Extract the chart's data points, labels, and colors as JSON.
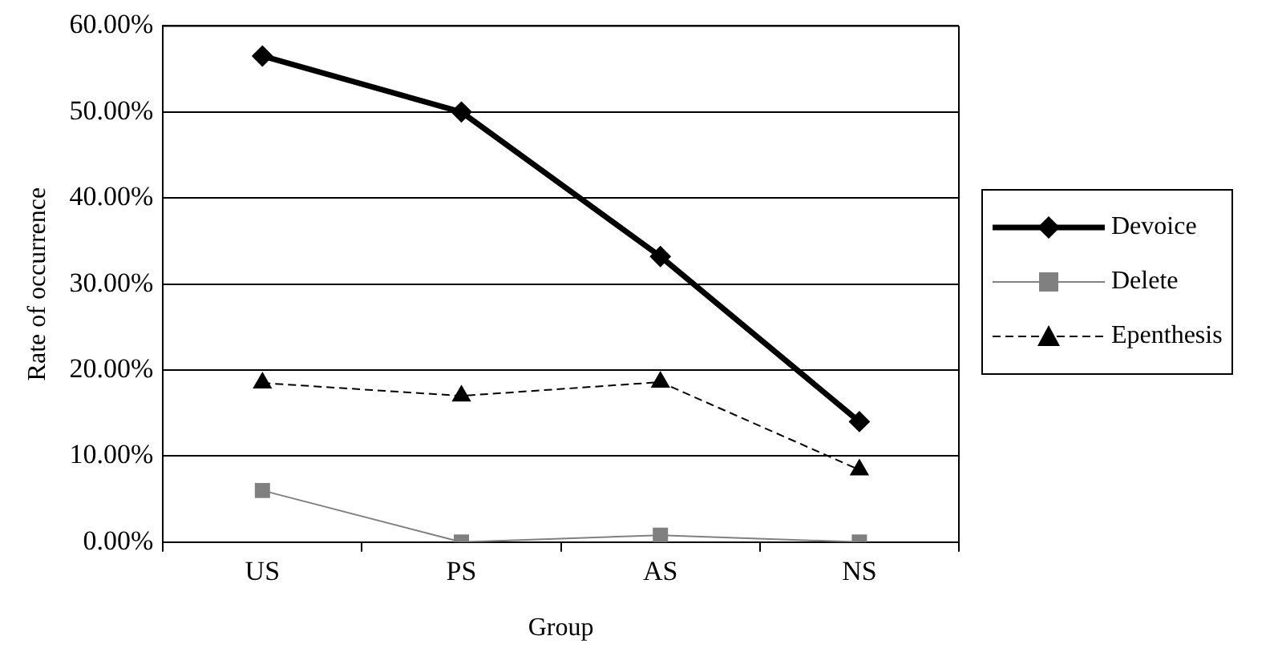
{
  "chart_data": {
    "type": "line",
    "xlabel": "Group",
    "ylabel": "Rate of occurrence",
    "categories": [
      "US",
      "PS",
      "AS",
      "NS"
    ],
    "series": [
      {
        "name": "Devoice",
        "color": "#000000",
        "values": [
          56.5,
          50.0,
          33.2,
          14.0
        ],
        "marker": "diamond",
        "line_style": "solid"
      },
      {
        "name": "Delete",
        "color": "#808080",
        "values": [
          6.0,
          0.0,
          0.8,
          0.0
        ],
        "marker": "square",
        "line_style": "solid"
      },
      {
        "name": "Epenthesis",
        "color": "#000000",
        "values": [
          18.5,
          17.0,
          18.6,
          8.4
        ],
        "marker": "triangle",
        "line_style": "dashed"
      }
    ],
    "ylim": [
      0,
      60
    ],
    "yticks": [
      {
        "value": 0,
        "label": "0.00%"
      },
      {
        "value": 10,
        "label": "10.00%"
      },
      {
        "value": 20,
        "label": "20.00%"
      },
      {
        "value": 30,
        "label": "30.00%"
      },
      {
        "value": 40,
        "label": "40.00%"
      },
      {
        "value": 50,
        "label": "50.00%"
      },
      {
        "value": 60,
        "label": "60.00%"
      }
    ],
    "grid": "y",
    "legend": "right"
  }
}
